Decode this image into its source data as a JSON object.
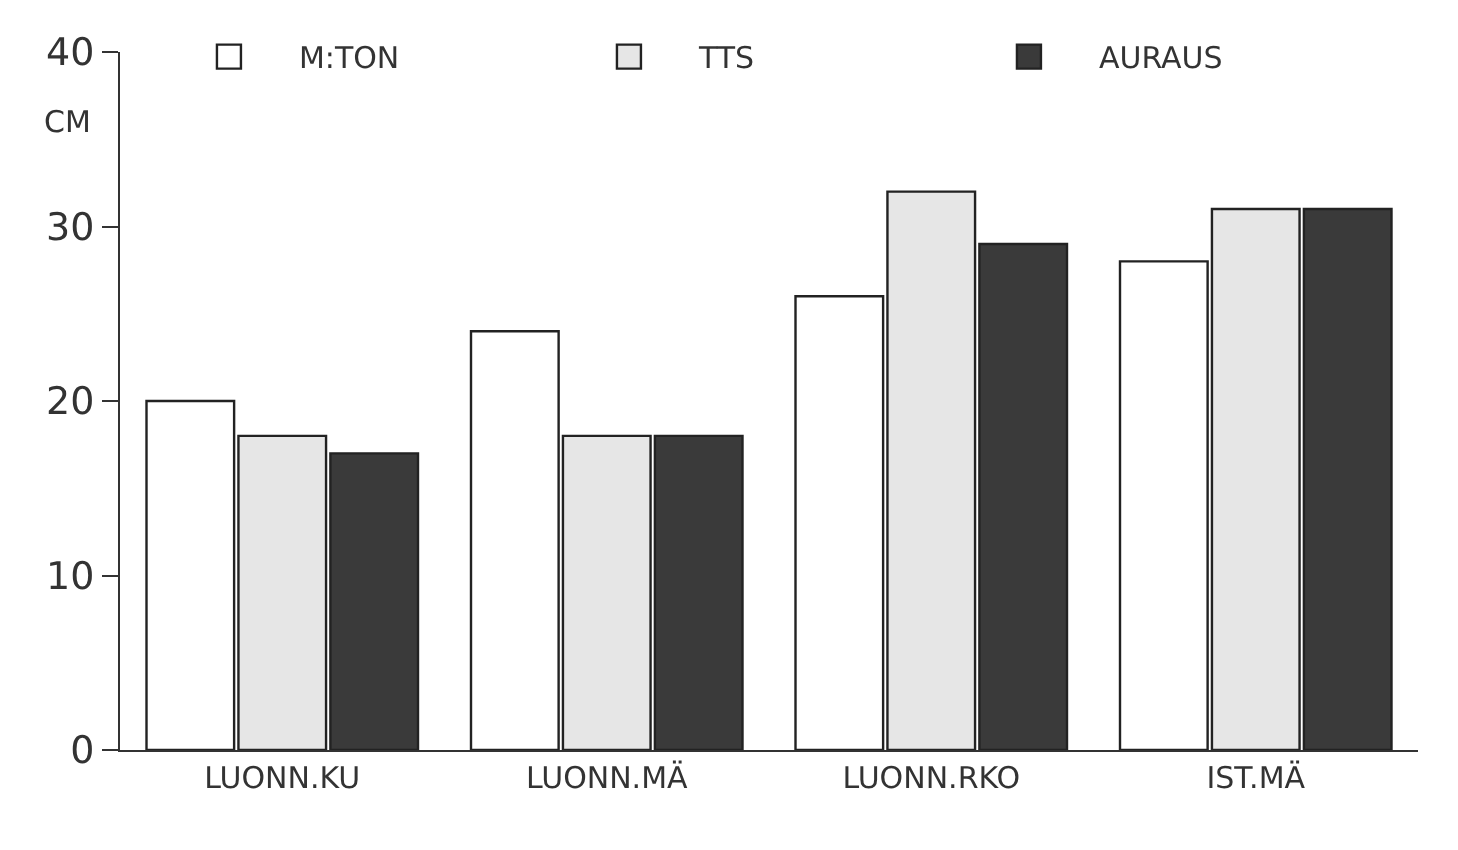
{
  "chart_data": {
    "type": "bar",
    "ylabel": "CM",
    "categories": [
      "LUONN.KU",
      "LUONN.MÄ",
      "LUONN.RKO",
      "IST.MÄ"
    ],
    "series": [
      {
        "name": "M:TON",
        "color": "#ffffff",
        "values": [
          20,
          24,
          26,
          28
        ]
      },
      {
        "name": "TTS",
        "color": "#e6e6e6",
        "values": [
          18,
          18,
          32,
          31
        ]
      },
      {
        "name": "AURAUS",
        "color": "#3a3a3a",
        "values": [
          17,
          18,
          29,
          31
        ]
      }
    ],
    "ylim": [
      0,
      40
    ],
    "yticks": [
      0,
      10,
      20,
      30,
      40
    ],
    "legend": "top"
  }
}
